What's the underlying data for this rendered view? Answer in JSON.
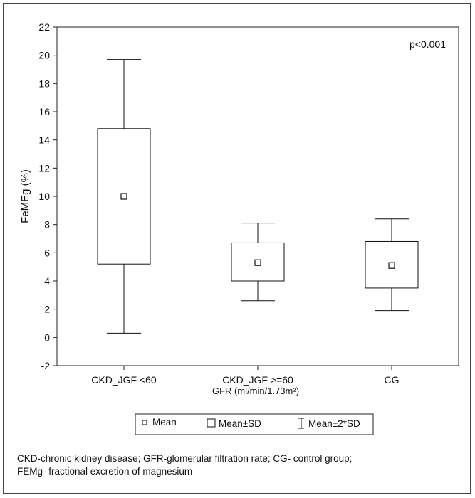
{
  "chart_data": {
    "type": "box",
    "ylabel": "FeMEg (%)",
    "xlabel": "GFR (ml/min/1.73m²)",
    "ylim": [
      -2,
      22
    ],
    "yticks": [
      "-2",
      "0",
      "2",
      "4",
      "6",
      "8",
      "10",
      "12",
      "14",
      "16",
      "18",
      "20",
      "22"
    ],
    "annotation": "p<0.001",
    "grid": false,
    "categories": [
      "CKD_JGF <60",
      "CKD_JGF >=60",
      "CG"
    ],
    "mean": [
      10.0,
      5.3,
      5.1
    ],
    "mean_minus_sd": [
      5.2,
      4.0,
      3.5
    ],
    "mean_plus_sd": [
      14.8,
      6.7,
      6.8
    ],
    "mean_minus_2sd": [
      0.3,
      2.6,
      1.9
    ],
    "mean_plus_2sd": [
      19.7,
      8.1,
      8.4
    ],
    "legend": {
      "placement": "bottom",
      "items": [
        "Mean",
        "Mean±SD",
        "Mean±2*SD"
      ]
    }
  },
  "caption": {
    "line1": "CKD-chronic kidney disease; GFR-glomerular filtration rate; CG- control group;",
    "line2": "FEMg- fractional excretion of magnesium"
  }
}
